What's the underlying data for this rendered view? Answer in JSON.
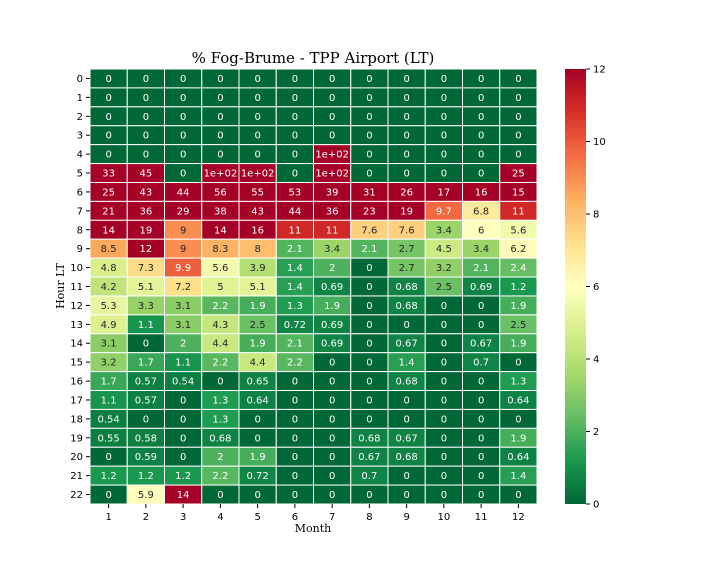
{
  "chart_data": {
    "type": "heatmap",
    "title": "% Fog-Brume - TPP Airport (LT)",
    "xlabel": "Month",
    "ylabel": "Hour LT",
    "x_categories": [
      "1",
      "2",
      "3",
      "4",
      "5",
      "6",
      "7",
      "8",
      "9",
      "10",
      "11",
      "12"
    ],
    "y_categories": [
      "0",
      "1",
      "2",
      "3",
      "4",
      "5",
      "6",
      "7",
      "8",
      "9",
      "10",
      "11",
      "12",
      "13",
      "14",
      "15",
      "16",
      "17",
      "18",
      "19",
      "20",
      "21",
      "22"
    ],
    "values": [
      [
        0,
        0,
        0,
        0,
        0,
        0,
        0,
        0,
        0,
        0,
        0,
        0
      ],
      [
        0,
        0,
        0,
        0,
        0,
        0,
        0,
        0,
        0,
        0,
        0,
        0
      ],
      [
        0,
        0,
        0,
        0,
        0,
        0,
        0,
        0,
        0,
        0,
        0,
        0
      ],
      [
        0,
        0,
        0,
        0,
        0,
        0,
        0,
        0,
        0,
        0,
        0,
        0
      ],
      [
        0,
        0,
        0,
        0,
        0,
        0,
        100,
        0,
        0,
        0,
        0,
        0
      ],
      [
        33,
        45,
        0,
        100,
        100,
        0,
        100,
        0,
        0,
        0,
        0,
        25
      ],
      [
        25,
        43,
        44,
        56,
        55,
        53,
        39,
        31,
        26,
        17,
        16,
        15
      ],
      [
        21,
        36,
        29,
        38,
        43,
        44,
        36,
        23,
        19,
        9.7,
        6.8,
        11
      ],
      [
        14,
        19,
        9,
        14,
        16,
        11,
        11,
        7.6,
        7.6,
        3.4,
        6,
        5.6
      ],
      [
        8.5,
        12,
        9,
        8.3,
        8,
        2.1,
        3.4,
        2.1,
        2.7,
        4.5,
        3.4,
        6.2
      ],
      [
        4.8,
        7.3,
        9.9,
        5.6,
        3.9,
        1.4,
        2,
        0,
        2.7,
        3.2,
        2.1,
        2.4
      ],
      [
        4.2,
        5.1,
        7.2,
        5,
        5.1,
        1.4,
        0.69,
        0,
        0.68,
        2.5,
        0.69,
        1.2
      ],
      [
        5.3,
        3.3,
        3.1,
        2.2,
        1.9,
        1.3,
        1.9,
        0,
        0.68,
        0,
        0,
        1.9
      ],
      [
        4.9,
        1.1,
        3.1,
        4.3,
        2.5,
        0.72,
        0.69,
        0,
        0,
        0,
        0,
        2.5
      ],
      [
        3.1,
        0,
        2,
        4.4,
        1.9,
        2.1,
        0.69,
        0,
        0.67,
        0,
        0.67,
        1.9
      ],
      [
        3.2,
        1.7,
        1.1,
        2.2,
        4.4,
        2.2,
        0,
        0,
        1.4,
        0,
        0.7,
        0
      ],
      [
        1.7,
        0.57,
        0.54,
        0,
        0.65,
        0,
        0,
        0,
        0.68,
        0,
        0,
        1.3
      ],
      [
        1.1,
        0.57,
        0,
        1.3,
        0.64,
        0,
        0,
        0,
        0,
        0,
        0,
        0.64
      ],
      [
        0.54,
        0,
        0,
        1.3,
        0,
        0,
        0,
        0,
        0,
        0,
        0,
        0
      ],
      [
        0.55,
        0.58,
        0,
        0.68,
        0,
        0,
        0,
        0.68,
        0.67,
        0,
        0,
        1.9
      ],
      [
        0,
        0.59,
        0,
        2,
        1.9,
        0,
        0,
        0.67,
        0.68,
        0,
        0,
        0.64
      ],
      [
        1.2,
        1.2,
        1.2,
        2.2,
        0.72,
        0,
        0,
        0.7,
        0,
        0,
        0,
        1.4
      ],
      [
        0,
        5.9,
        14,
        0,
        0,
        0,
        0,
        0,
        0,
        0,
        0,
        0
      ]
    ],
    "cell_labels": [
      [
        "0",
        "0",
        "0",
        "0",
        "0",
        "0",
        "0",
        "0",
        "0",
        "0",
        "0",
        "0"
      ],
      [
        "0",
        "0",
        "0",
        "0",
        "0",
        "0",
        "0",
        "0",
        "0",
        "0",
        "0",
        "0"
      ],
      [
        "0",
        "0",
        "0",
        "0",
        "0",
        "0",
        "0",
        "0",
        "0",
        "0",
        "0",
        "0"
      ],
      [
        "0",
        "0",
        "0",
        "0",
        "0",
        "0",
        "0",
        "0",
        "0",
        "0",
        "0",
        "0"
      ],
      [
        "0",
        "0",
        "0",
        "0",
        "0",
        "0",
        "1e+02",
        "0",
        "0",
        "0",
        "0",
        "0"
      ],
      [
        "33",
        "45",
        "0",
        "1e+02",
        "1e+02",
        "0",
        "1e+02",
        "0",
        "0",
        "0",
        "0",
        "25"
      ],
      [
        "25",
        "43",
        "44",
        "56",
        "55",
        "53",
        "39",
        "31",
        "26",
        "17",
        "16",
        "15"
      ],
      [
        "21",
        "36",
        "29",
        "38",
        "43",
        "44",
        "36",
        "23",
        "19",
        "9.7",
        "6.8",
        "11"
      ],
      [
        "14",
        "19",
        "9",
        "14",
        "16",
        "11",
        "11",
        "7.6",
        "7.6",
        "3.4",
        "6",
        "5.6"
      ],
      [
        "8.5",
        "12",
        "9",
        "8.3",
        "8",
        "2.1",
        "3.4",
        "2.1",
        "2.7",
        "4.5",
        "3.4",
        "6.2"
      ],
      [
        "4.8",
        "7.3",
        "9.9",
        "5.6",
        "3.9",
        "1.4",
        "2",
        "0",
        "2.7",
        "3.2",
        "2.1",
        "2.4"
      ],
      [
        "4.2",
        "5.1",
        "7.2",
        "5",
        "5.1",
        "1.4",
        "0.69",
        "0",
        "0.68",
        "2.5",
        "0.69",
        "1.2"
      ],
      [
        "5.3",
        "3.3",
        "3.1",
        "2.2",
        "1.9",
        "1.3",
        "1.9",
        "0",
        "0.68",
        "0",
        "0",
        "1.9"
      ],
      [
        "4.9",
        "1.1",
        "3.1",
        "4.3",
        "2.5",
        "0.72",
        "0.69",
        "0",
        "0",
        "0",
        "0",
        "2.5"
      ],
      [
        "3.1",
        "0",
        "2",
        "4.4",
        "1.9",
        "2.1",
        "0.69",
        "0",
        "0.67",
        "0",
        "0.67",
        "1.9"
      ],
      [
        "3.2",
        "1.7",
        "1.1",
        "2.2",
        "4.4",
        "2.2",
        "0",
        "0",
        "1.4",
        "0",
        "0.7",
        "0"
      ],
      [
        "1.7",
        "0.57",
        "0.54",
        "0",
        "0.65",
        "0",
        "0",
        "0",
        "0.68",
        "0",
        "0",
        "1.3"
      ],
      [
        "1.1",
        "0.57",
        "0",
        "1.3",
        "0.64",
        "0",
        "0",
        "0",
        "0",
        "0",
        "0",
        "0.64"
      ],
      [
        "0.54",
        "0",
        "0",
        "1.3",
        "0",
        "0",
        "0",
        "0",
        "0",
        "0",
        "0",
        "0"
      ],
      [
        "0.55",
        "0.58",
        "0",
        "0.68",
        "0",
        "0",
        "0",
        "0.68",
        "0.67",
        "0",
        "0",
        "1.9"
      ],
      [
        "0",
        "0.59",
        "0",
        "2",
        "1.9",
        "0",
        "0",
        "0.67",
        "0.68",
        "0",
        "0",
        "0.64"
      ],
      [
        "1.2",
        "1.2",
        "1.2",
        "2.2",
        "0.72",
        "0",
        "0",
        "0.7",
        "0",
        "0",
        "0",
        "1.4"
      ],
      [
        "0",
        "5.9",
        "14",
        "0",
        "0",
        "0",
        "0",
        "0",
        "0",
        "0",
        "0",
        "0"
      ]
    ],
    "colorscale": "RdYlGn_r",
    "vmin": 0,
    "vmax": 12,
    "colorbar_ticks": [
      "0",
      "2",
      "4",
      "6",
      "8",
      "10",
      "12"
    ],
    "grid": false
  }
}
